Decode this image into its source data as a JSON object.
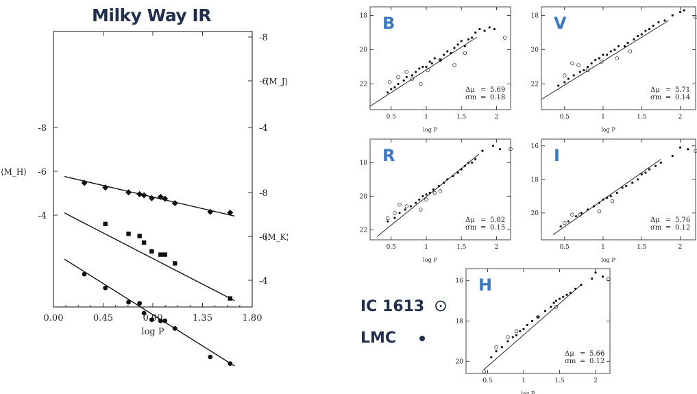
{
  "title": "Milky Way IR",
  "chart_data": [
    {
      "type": "scatter",
      "panel": "milky-way-ir",
      "xlabel": "log P",
      "xlim": [
        0.0,
        1.8
      ],
      "xticks": [
        "0.00",
        "0.45",
        "0.90",
        "1.35",
        "1.80"
      ],
      "left_axis_label": "⟨M_H⟩",
      "left_ticks": [
        "-8",
        "-6",
        "-4"
      ],
      "right_labels": [
        {
          "name": "⟨M_J⟩",
          "ticks": [
            "-8",
            "-6",
            "-4"
          ]
        },
        {
          "name": "⟨M_K⟩",
          "ticks": [
            "-8",
            "-6",
            "-4"
          ]
        }
      ],
      "series": [
        {
          "name": "⟨M_J⟩",
          "marker": "diamond",
          "x": [
            0.28,
            0.47,
            0.68,
            0.78,
            0.82,
            0.89,
            0.97,
            1.01,
            1.1,
            1.42,
            1.6
          ],
          "y": [
            -6.45,
            -6.66,
            -6.87,
            -6.95,
            -7.0,
            -7.13,
            -7.07,
            -7.15,
            -7.35,
            -7.73,
            -7.77
          ],
          "fit": [
            [
              0.1,
              -6.17
            ],
            [
              1.64,
              -7.92
            ]
          ]
        },
        {
          "name": "⟨M_H⟩",
          "marker": "square",
          "x": [
            0.47,
            0.68,
            0.78,
            0.82,
            0.89,
            0.97,
            1.01,
            1.1,
            1.6
          ],
          "y": [
            -4.4,
            -4.85,
            -4.95,
            -5.25,
            -5.65,
            -5.8,
            -5.8,
            -6.2,
            -7.8
          ],
          "fit": [
            [
              0.1,
              -3.9
            ],
            [
              1.64,
              -7.9
            ]
          ]
        },
        {
          "name": "⟨M_K⟩",
          "marker": "circle",
          "x": [
            0.28,
            0.47,
            0.68,
            0.78,
            0.82,
            0.89,
            0.97,
            1.01,
            1.1,
            1.42,
            1.6
          ],
          "y": [
            -3.72,
            -4.35,
            -5.0,
            -5.05,
            -5.5,
            -5.8,
            -5.85,
            -5.85,
            -6.2,
            -7.5,
            -7.8
          ],
          "fit": [
            [
              0.1,
              -3.04
            ],
            [
              1.64,
              -7.91
            ]
          ]
        }
      ]
    },
    {
      "type": "scatter",
      "band": "B",
      "xlabel": "log P",
      "xlim": [
        0.2,
        2.2
      ],
      "ylim": [
        23.5,
        17.5
      ],
      "xticks": [
        "0.5",
        "1",
        "1.5",
        "2"
      ],
      "yticks": [
        "18",
        "20",
        "22"
      ],
      "dmu": "5.69",
      "sigma": "0.18",
      "fit": [
        [
          0.2,
          23.3
        ],
        [
          1.72,
          19.27
        ]
      ],
      "lmc": {
        "x": [
          0.45,
          0.5,
          0.55,
          0.6,
          0.68,
          0.72,
          0.8,
          0.85,
          0.9,
          0.95,
          1.0,
          1.05,
          1.08,
          1.12,
          1.2,
          1.25,
          1.3,
          1.35,
          1.4,
          1.45,
          1.5,
          1.55,
          1.6,
          1.65,
          1.7,
          1.76,
          1.83,
          1.9,
          1.97
        ],
        "y": [
          22.5,
          22.3,
          22.2,
          22.0,
          21.8,
          21.6,
          21.5,
          21.3,
          21.1,
          21.0,
          21.0,
          20.7,
          20.8,
          20.5,
          20.6,
          20.3,
          20.1,
          20.2,
          19.9,
          19.7,
          19.5,
          19.8,
          19.4,
          19.3,
          19.0,
          18.8,
          18.9,
          18.7,
          18.8
        ]
      },
      "ic1613": {
        "x": [
          0.48,
          0.6,
          0.72,
          0.8,
          0.92,
          1.02,
          1.2,
          1.4,
          1.55,
          2.12
        ],
        "y": [
          21.9,
          21.6,
          21.3,
          21.7,
          22.0,
          21.2,
          20.6,
          20.9,
          20.2,
          19.3
        ]
      }
    },
    {
      "type": "scatter",
      "band": "V",
      "xlabel": "log P",
      "xlim": [
        0.2,
        2.2
      ],
      "ylim": [
        23.5,
        17.5
      ],
      "xticks": [
        "0.5",
        "1",
        "1.5",
        "2"
      ],
      "yticks": [
        "18",
        "20",
        "22"
      ],
      "dmu": "5.71",
      "sigma": "0.14",
      "fit": [
        [
          0.2,
          22.9
        ],
        [
          1.85,
          18.3
        ]
      ],
      "lmc": {
        "x": [
          0.42,
          0.5,
          0.55,
          0.62,
          0.7,
          0.75,
          0.8,
          0.85,
          0.9,
          0.95,
          1.0,
          1.05,
          1.1,
          1.15,
          1.2,
          1.28,
          1.32,
          1.4,
          1.45,
          1.5,
          1.55,
          1.6,
          1.65,
          1.72,
          1.8,
          1.9,
          2.0,
          2.05
        ],
        "y": [
          22.1,
          21.9,
          21.7,
          21.5,
          21.3,
          21.2,
          21.0,
          20.8,
          20.6,
          20.5,
          20.3,
          20.3,
          20.1,
          20.0,
          19.8,
          19.8,
          19.6,
          19.4,
          19.2,
          19.1,
          18.9,
          18.8,
          18.6,
          18.4,
          18.3,
          18.0,
          17.8,
          17.7
        ]
      },
      "ic1613": {
        "x": [
          0.5,
          0.6,
          0.68,
          0.8,
          0.98,
          1.18,
          1.35,
          2.2
        ],
        "y": [
          21.5,
          20.8,
          20.9,
          21.2,
          20.7,
          20.5,
          20.1,
          18.1
        ]
      }
    },
    {
      "type": "scatter",
      "band": "R",
      "xlabel": "log P",
      "xlim": [
        0.2,
        2.2
      ],
      "ylim": [
        22.6,
        16.6
      ],
      "xticks": [
        "0.5",
        "1",
        "1.5",
        "2"
      ],
      "yticks": [
        "18",
        "20",
        "22"
      ],
      "dmu": "5.82",
      "sigma": "0.15",
      "fit": [
        [
          0.3,
          22.4
        ],
        [
          1.75,
          17.5
        ]
      ],
      "lmc": {
        "x": [
          0.45,
          0.55,
          0.62,
          0.7,
          0.78,
          0.85,
          0.9,
          0.95,
          1.0,
          1.05,
          1.1,
          1.18,
          1.25,
          1.3,
          1.38,
          1.45,
          1.5,
          1.55,
          1.6,
          1.65,
          1.7,
          1.8,
          1.95,
          2.05
        ],
        "y": [
          21.5,
          21.3,
          21.0,
          20.8,
          20.6,
          20.4,
          20.2,
          20.0,
          19.9,
          19.8,
          19.6,
          19.4,
          19.2,
          19.0,
          18.8,
          18.6,
          18.4,
          18.2,
          18.0,
          18.0,
          17.8,
          17.3,
          17.0,
          17.2
        ]
      },
      "ic1613": {
        "x": [
          0.45,
          0.55,
          0.62,
          0.72,
          0.92,
          1.0,
          1.12,
          1.2,
          2.2
        ],
        "y": [
          21.3,
          21.0,
          20.5,
          20.6,
          20.8,
          20.2,
          19.8,
          19.7,
          17.2
        ]
      }
    },
    {
      "type": "scatter",
      "band": "I",
      "xlabel": "log P",
      "xlim": [
        0.2,
        2.2
      ],
      "ylim": [
        21.6,
        15.6
      ],
      "xticks": [
        "0.5",
        "1",
        "1.5",
        "2"
      ],
      "yticks": [
        "16",
        "18",
        "20"
      ],
      "dmu": "5.76",
      "sigma": "0.12",
      "fit": [
        [
          0.35,
          21.3
        ],
        [
          1.75,
          16.8
        ]
      ],
      "lmc": {
        "x": [
          0.45,
          0.55,
          0.65,
          0.72,
          0.8,
          0.88,
          0.95,
          1.0,
          1.05,
          1.1,
          1.18,
          1.25,
          1.3,
          1.38,
          1.45,
          1.5,
          1.55,
          1.6,
          1.68,
          1.75,
          1.9,
          2.0,
          2.1
        ],
        "y": [
          20.8,
          20.5,
          20.2,
          20.0,
          19.8,
          19.6,
          19.4,
          19.2,
          19.1,
          19.0,
          18.8,
          18.5,
          18.4,
          18.2,
          18.0,
          17.7,
          17.6,
          17.4,
          17.2,
          17.0,
          16.6,
          16.1,
          16.2
        ]
      },
      "ic1613": {
        "x": [
          0.5,
          0.6,
          0.7,
          0.95,
          1.12,
          2.2
        ],
        "y": [
          20.6,
          20.1,
          20.1,
          19.9,
          19.3,
          16.3
        ]
      }
    },
    {
      "type": "scatter",
      "band": "H",
      "xlabel": "log P",
      "xlim": [
        0.2,
        2.2
      ],
      "ylim": [
        20.6,
        15.4
      ],
      "xticks": [
        "0.5",
        "1",
        "1.5",
        "2"
      ],
      "yticks": [
        "16",
        "18",
        "20"
      ],
      "dmu": "5.66",
      "sigma": "0.12",
      "fit": [
        [
          0.45,
          20.4
        ],
        [
          1.8,
          16.2
        ]
      ],
      "lmc": {
        "x": [
          0.55,
          0.62,
          0.7,
          0.78,
          0.85,
          0.9,
          0.95,
          1.0,
          1.05,
          1.12,
          1.2,
          1.3,
          1.38,
          1.42,
          1.45,
          1.5,
          1.55,
          1.6,
          1.65,
          1.72,
          1.8,
          1.95,
          2.0,
          2.1
        ],
        "y": [
          19.8,
          19.5,
          19.3,
          19.0,
          18.8,
          18.7,
          18.5,
          18.4,
          18.2,
          18.0,
          17.8,
          17.5,
          17.3,
          17.1,
          17.0,
          16.9,
          16.8,
          16.7,
          16.6,
          16.4,
          16.2,
          15.9,
          15.6,
          15.8
        ]
      },
      "ic1613": {
        "x": [
          0.45,
          0.62,
          0.78,
          0.9,
          1.2,
          1.45,
          2.18
        ],
        "y": [
          20.5,
          19.3,
          18.8,
          18.5,
          17.8,
          17.3,
          15.9
        ]
      }
    }
  ],
  "legend": {
    "ic1613_label": "IC 1613",
    "lmc_label": "LMC",
    "ic1613_symbol": "⊙"
  },
  "labels": {
    "dmu_label": "Δμ",
    "sigma_label": "σm",
    "eq": "="
  }
}
